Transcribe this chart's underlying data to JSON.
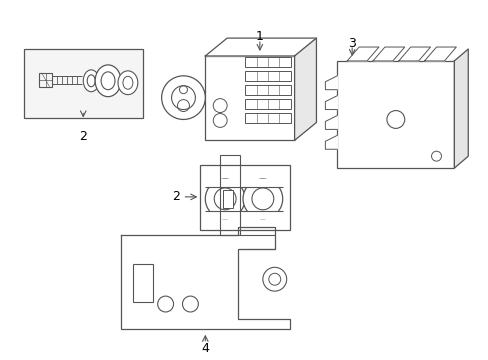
{
  "bg_color": "#ffffff",
  "line_color": "#555555",
  "label_color": "#000000",
  "fig_width": 4.89,
  "fig_height": 3.6,
  "dpi": 100
}
